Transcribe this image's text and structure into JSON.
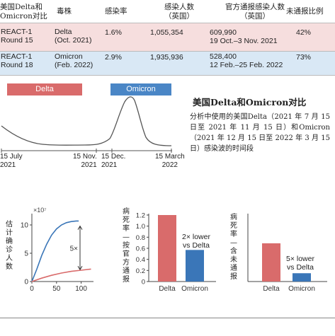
{
  "table": {
    "headers": [
      "美国Delta和\nOmicron对比",
      "毒株",
      "感染率",
      "感染人数\n（英国）",
      "官方通报感染人数\n（英国）",
      "未通报比例"
    ],
    "rows": [
      {
        "study": "REACT-1\nRound 15",
        "strain": "Delta\n(Oct. 2021)",
        "rate": "1.6%",
        "infected": "1,055,354",
        "reported": "609,990\n19 Oct.–3 Nov. 2021",
        "unreported": "42%"
      },
      {
        "study": "REACT-1\nRound 18",
        "strain": "Omicron\n(Feb. 2022)",
        "rate": "2.9%",
        "infected": "1,935,936",
        "reported": "528,400\n12 Feb.–25 Feb. 2022",
        "unreported": "73%"
      }
    ],
    "colors": {
      "delta_row": "#f6dede",
      "omicron_row": "#d9e8f5"
    }
  },
  "wave_chart": {
    "tags": {
      "delta": "Delta",
      "omicron": "Omicron"
    },
    "colors": {
      "delta": "#d96b6b",
      "omicron": "#4a86c6",
      "line": "#555555"
    },
    "x_ticks": [
      "15 July\n2021",
      "15 Nov.\n2021",
      "15 Dec.\n2021",
      "15 March\n2022"
    ]
  },
  "caption": {
    "title": "美国Delta和Omicron对比",
    "body": "分析中使用的美国Delta（2021 年 7 月 15 日至 2021 年 11 月 15 日）和Omicron（2021 年 12 月 15 日至 2022 年 3 月 15 日）感染波的时间段"
  },
  "chart_data": [
    {
      "type": "line",
      "title": "",
      "xlabel": "",
      "ylabel": "估计确诊人数",
      "y_multiplier_label": "×10⁷",
      "xlim": [
        0,
        125
      ],
      "ylim": [
        0,
        11
      ],
      "x_ticks": [
        0,
        50,
        100
      ],
      "y_ticks": [
        0,
        5,
        10
      ],
      "annotation": "5×",
      "series": [
        {
          "color": "#3a76b8",
          "x": [
            0,
            10,
            20,
            30,
            40,
            50,
            60,
            70,
            80,
            90,
            95
          ],
          "y": [
            0,
            2.2,
            4.6,
            6.6,
            8.2,
            9.3,
            10.0,
            10.4,
            10.6,
            10.7,
            10.7
          ]
        },
        {
          "color": "#d96b6b",
          "x": [
            0,
            20,
            40,
            60,
            80,
            100,
            120
          ],
          "y": [
            0,
            0.6,
            1.1,
            1.5,
            1.8,
            2.0,
            2.2
          ]
        }
      ]
    },
    {
      "type": "bar",
      "title": "",
      "ylabel": "病死率—按官方通报",
      "categories": [
        "Delta",
        "Omicron"
      ],
      "values": [
        1.2,
        0.57
      ],
      "colors": [
        "#d96b6b",
        "#3a76b8"
      ],
      "ylim": [
        0,
        1.2
      ],
      "y_ticks": [
        "0",
        "0.2",
        "0.4",
        "0.6",
        "0.8",
        "1.0",
        "1.2"
      ],
      "annotation": "2× lower\nvs Delta"
    },
    {
      "type": "bar",
      "title": "",
      "ylabel": "病死率—含未通报",
      "categories": [
        "Delta",
        "Omicron"
      ],
      "values": [
        0.69,
        0.15
      ],
      "colors": [
        "#d96b6b",
        "#3a76b8"
      ],
      "ylim": [
        0,
        1.2
      ],
      "annotation": "5× lower\nvs Delta"
    }
  ]
}
